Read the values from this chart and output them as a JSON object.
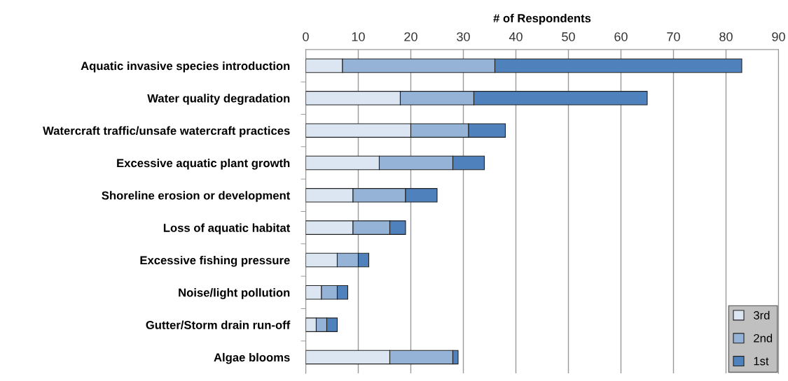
{
  "chart_data": {
    "type": "bar",
    "orientation": "horizontal",
    "stacked": true,
    "xlabel": "# of Respondents",
    "categories": [
      "Aquatic invasive species introduction",
      "Water quality degradation",
      "Watercraft traffic/unsafe watercraft practices",
      "Excessive aquatic plant growth",
      "Shoreline erosion or development",
      "Loss of aquatic habitat",
      "Excessive fishing pressure",
      "Noise/light pollution",
      "Gutter/Storm drain run-off",
      "Algae blooms"
    ],
    "series": [
      {
        "name": "3rd",
        "color": "#dce6f2",
        "values": [
          7,
          18,
          20,
          14,
          9,
          9,
          6,
          3,
          2,
          16
        ]
      },
      {
        "name": "2nd",
        "color": "#95b3d7",
        "values": [
          29,
          14,
          11,
          14,
          10,
          7,
          4,
          3,
          2,
          12
        ]
      },
      {
        "name": "1st",
        "color": "#4f81bd",
        "values": [
          47,
          33,
          7,
          6,
          6,
          3,
          2,
          2,
          2,
          1
        ]
      }
    ],
    "xlim": [
      0,
      90
    ],
    "xticks": [
      0,
      10,
      20,
      30,
      40,
      50,
      60,
      70,
      80,
      90
    ],
    "grid": "x",
    "legend": "bottom right"
  }
}
